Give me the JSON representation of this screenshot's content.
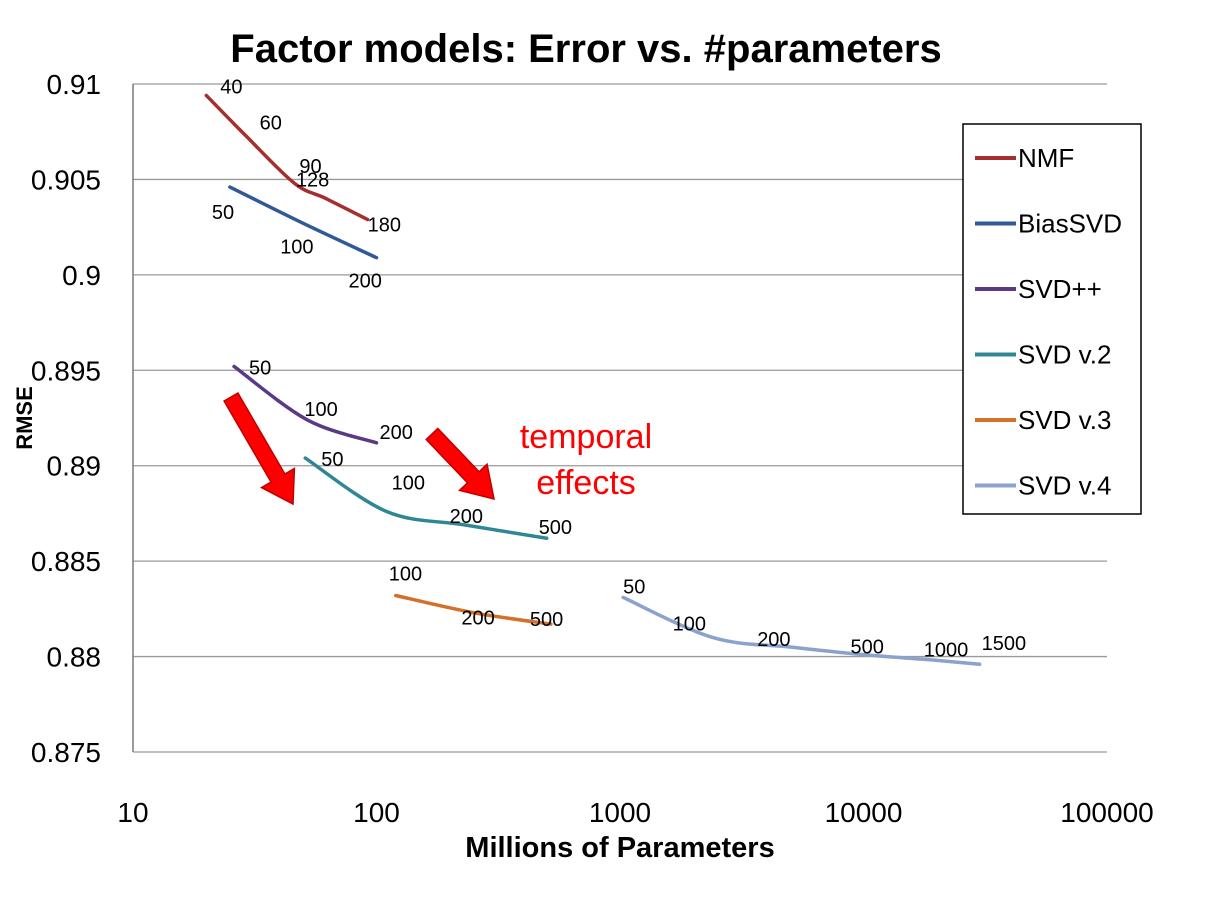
{
  "chart_data": {
    "type": "line",
    "title": "Factor models: Error vs. #parameters",
    "xlabel": "Millions of Parameters",
    "ylabel": "RMSE",
    "x_scale": "log",
    "xlim": [
      10,
      100000
    ],
    "ylim": [
      0.875,
      0.91
    ],
    "x_ticks": [
      "10",
      "100",
      "1000",
      "10000",
      "100000"
    ],
    "y_ticks": [
      "0.91",
      "0.905",
      "0.9",
      "0.895",
      "0.89",
      "0.885",
      "0.88",
      "0.875"
    ],
    "grid": "horizontal",
    "legend_position": "right",
    "annotation": {
      "text_line1": "temporal",
      "text_line2": "effects",
      "color": "#ff0000"
    },
    "series": [
      {
        "name": "NMF",
        "color": "#a3302f",
        "x": [
          20,
          29,
          46,
          62,
          92
        ],
        "y": [
          0.9094,
          0.9073,
          0.9048,
          0.904,
          0.9029
        ],
        "labels": [
          "40",
          "60",
          "90",
          "128",
          "180"
        ]
      },
      {
        "name": "BiasSVD",
        "color": "#2f5a96",
        "x": [
          25,
          50,
          100
        ],
        "y": [
          0.9046,
          0.9027,
          0.9009
        ],
        "labels": [
          "50",
          "100",
          "200"
        ]
      },
      {
        "name": "SVD++",
        "color": "#5a3a85",
        "x": [
          26,
          52,
          100
        ],
        "y": [
          0.8952,
          0.8924,
          0.8912
        ],
        "labels": [
          "50",
          "100",
          "200"
        ]
      },
      {
        "name": "SVD v.2",
        "color": "#2f8796",
        "x": [
          51,
          110,
          230,
          500
        ],
        "y": [
          0.8904,
          0.8876,
          0.8869,
          0.8862
        ],
        "labels": [
          "50",
          "100",
          "200",
          "500"
        ]
      },
      {
        "name": "SVD v.3",
        "color": "#d4702a",
        "x": [
          120,
          250,
          520
        ],
        "y": [
          0.8832,
          0.8823,
          0.8817
        ],
        "labels": [
          "100",
          "200",
          "500"
        ]
      },
      {
        "name": "SVD v.4",
        "color": "#8ba3cc",
        "x": [
          1030,
          2400,
          5000,
          10000,
          20000,
          30000
        ],
        "y": [
          0.8831,
          0.881,
          0.8805,
          0.8801,
          0.8798,
          0.8796
        ],
        "labels": [
          "50",
          "100",
          "200",
          "500",
          "1000",
          "1500"
        ]
      }
    ]
  }
}
